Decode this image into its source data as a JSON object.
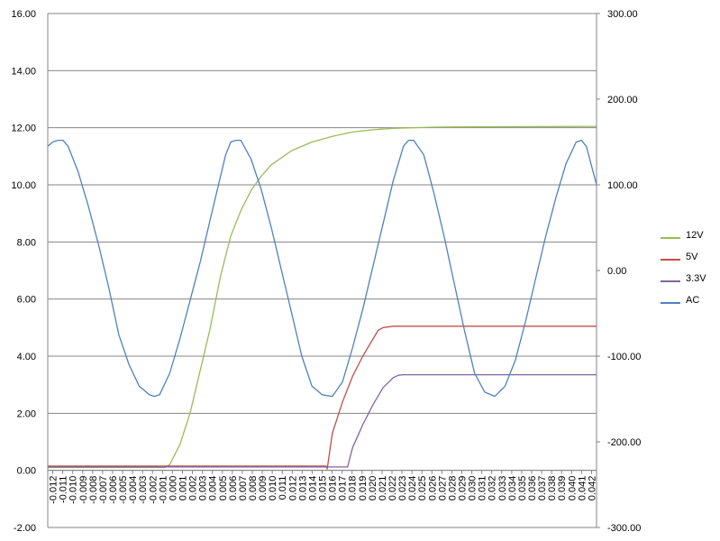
{
  "chart_data": {
    "type": "line",
    "title": "",
    "xlabel": "",
    "ylabel": "",
    "y_left": {
      "min": -2,
      "max": 16,
      "step": 2,
      "tick_labels": [
        "-2.00",
        "0.00",
        "2.00",
        "4.00",
        "6.00",
        "8.00",
        "10.00",
        "12.00",
        "14.00",
        "16.00"
      ]
    },
    "y_right": {
      "min": -300,
      "max": 300,
      "step": 100,
      "tick_labels": [
        "-300.00",
        "-200.00",
        "-100.00",
        "0.00",
        "100.00",
        "200.00",
        "300.00"
      ]
    },
    "x_ticks": [
      "-0.012",
      "-0.011",
      "-0.010",
      "-0.009",
      "-0.008",
      "-0.007",
      "-0.006",
      "-0.005",
      "-0.004",
      "-0.003",
      "-0.002",
      "-0.001",
      "0.000",
      "0.001",
      "0.002",
      "0.003",
      "0.004",
      "0.005",
      "0.006",
      "0.007",
      "0.008",
      "0.009",
      "0.010",
      "0.011",
      "0.012",
      "0.013",
      "0.014",
      "0.015",
      "0.016",
      "0.017",
      "0.018",
      "0.019",
      "0.020",
      "0.021",
      "0.022",
      "0.023",
      "0.024",
      "0.025",
      "0.026",
      "0.027",
      "0.028",
      "0.029",
      "0.030",
      "0.031",
      "0.032",
      "0.033",
      "0.034",
      "0.035",
      "0.036",
      "0.037",
      "0.038",
      "0.039",
      "0.040",
      "0.041",
      "0.042"
    ],
    "x_range": [
      -0.012,
      0.042
    ],
    "grid": "horizontal",
    "legend_position": "right",
    "series": [
      {
        "name": "12V",
        "axis": "left",
        "color": "#9BBB59",
        "x": [
          -0.012,
          -0.0005,
          0.0,
          0.001,
          0.002,
          0.003,
          0.004,
          0.005,
          0.006,
          0.007,
          0.008,
          0.009,
          0.01,
          0.012,
          0.014,
          0.016,
          0.018,
          0.02,
          0.022,
          0.026,
          0.03,
          0.036,
          0.042
        ],
        "y": [
          0.1,
          0.1,
          0.2,
          0.9,
          2.0,
          3.5,
          5.0,
          6.8,
          8.2,
          9.1,
          9.8,
          10.3,
          10.7,
          11.2,
          11.5,
          11.7,
          11.85,
          11.93,
          11.98,
          12.02,
          12.03,
          12.04,
          12.05
        ]
      },
      {
        "name": "5V",
        "axis": "left",
        "color": "#C0504D",
        "x": [
          -0.012,
          0.0154,
          0.0155,
          0.016,
          0.017,
          0.018,
          0.019,
          0.02,
          0.0205,
          0.021,
          0.022,
          0.024,
          0.042
        ],
        "y": [
          0.15,
          0.15,
          0.05,
          1.3,
          2.4,
          3.3,
          4.0,
          4.6,
          4.9,
          5.0,
          5.05,
          5.05,
          5.05
        ]
      },
      {
        "name": "3.3V",
        "axis": "left",
        "color": "#8064A2",
        "x": [
          -0.012,
          0.0175,
          0.018,
          0.019,
          0.02,
          0.021,
          0.022,
          0.0225,
          0.023,
          0.042
        ],
        "y": [
          0.12,
          0.12,
          0.8,
          1.6,
          2.3,
          2.9,
          3.25,
          3.33,
          3.35,
          3.35
        ]
      },
      {
        "name": "AC",
        "axis": "right",
        "color": "#4F81BD",
        "x": [
          -0.012,
          -0.0115,
          -0.011,
          -0.0105,
          -0.01,
          -0.009,
          -0.008,
          -0.007,
          -0.006,
          -0.005,
          -0.004,
          -0.003,
          -0.002,
          -0.0015,
          -0.001,
          0.0,
          0.001,
          0.002,
          0.003,
          0.004,
          0.005,
          0.0055,
          0.006,
          0.0065,
          0.007,
          0.008,
          0.009,
          0.01,
          0.011,
          0.012,
          0.013,
          0.014,
          0.015,
          0.016,
          0.017,
          0.018,
          0.019,
          0.02,
          0.021,
          0.022,
          0.023,
          0.0235,
          0.024,
          0.025,
          0.026,
          0.027,
          0.028,
          0.029,
          0.03,
          0.031,
          0.032,
          0.033,
          0.034,
          0.035,
          0.036,
          0.037,
          0.038,
          0.039,
          0.04,
          0.0405,
          0.041,
          0.042
        ],
        "y": [
          145,
          150,
          152,
          152,
          145,
          115,
          75,
          30,
          -20,
          -75,
          -110,
          -135,
          -145,
          -147,
          -145,
          -120,
          -80,
          -35,
          10,
          60,
          110,
          135,
          150,
          152,
          152,
          130,
          95,
          50,
          0,
          -50,
          -100,
          -135,
          -145,
          -147,
          -130,
          -90,
          -45,
          5,
          55,
          105,
          145,
          152,
          152,
          135,
          90,
          40,
          -15,
          -70,
          -120,
          -142,
          -147,
          -135,
          -105,
          -60,
          -10,
          40,
          85,
          125,
          150,
          152,
          145,
          100
        ]
      }
    ]
  }
}
